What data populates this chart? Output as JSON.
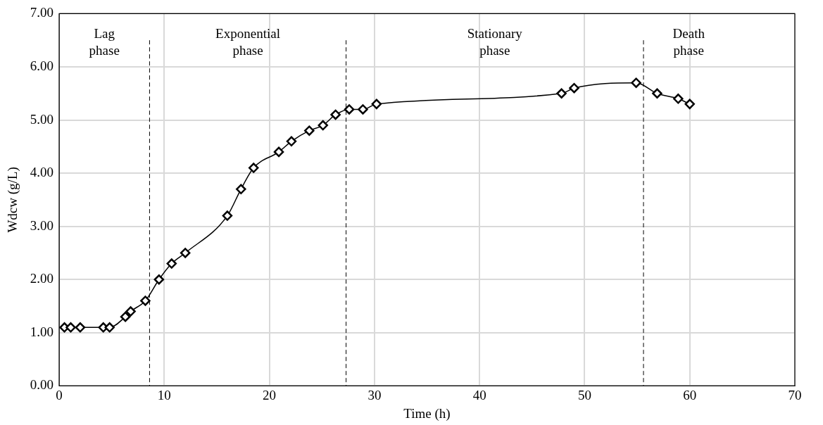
{
  "chart_data": {
    "type": "line",
    "xlabel": "Time (h)",
    "ylabel": "Wdcw (g/L)",
    "x": [
      0.5,
      1.1,
      2.0,
      4.2,
      4.8,
      6.3,
      6.8,
      8.2,
      9.5,
      10.7,
      12.0,
      16.0,
      17.3,
      18.5,
      20.9,
      22.1,
      23.8,
      25.1,
      26.3,
      27.6,
      28.9,
      30.2,
      47.8,
      49.0,
      54.9,
      56.9,
      58.9,
      60.0
    ],
    "series": [
      {
        "color": "#000000",
        "values": [
          1.1,
          1.1,
          1.1,
          1.1,
          1.1,
          1.3,
          1.4,
          1.6,
          2.0,
          2.3,
          2.5,
          3.2,
          3.7,
          4.1,
          4.4,
          4.6,
          4.8,
          4.9,
          5.1,
          5.2,
          5.2,
          5.3,
          5.5,
          5.6,
          5.7,
          5.5,
          5.4,
          5.3
        ]
      }
    ],
    "xlim": [
      0,
      70
    ],
    "xticks": [
      0,
      10,
      20,
      30,
      40,
      50,
      60,
      70
    ],
    "ylim": [
      0,
      7
    ],
    "yticks": [
      {
        "value": 0,
        "label": "0.00"
      },
      {
        "value": 1,
        "label": "1.00"
      },
      {
        "value": 2,
        "label": "2.00"
      },
      {
        "value": 3,
        "label": "3.00"
      },
      {
        "value": 4,
        "label": "4.00"
      },
      {
        "value": 5,
        "label": "5.00"
      },
      {
        "value": 6,
        "label": "6.00"
      },
      {
        "value": 7,
        "label": "7.00"
      }
    ],
    "ref_lines": [
      {
        "axis": "x",
        "value": 8.6,
        "line_style": "dashed",
        "color": "#000000"
      },
      {
        "axis": "x",
        "value": 27.3,
        "line_style": "dashed",
        "color": "#000000"
      },
      {
        "axis": "x",
        "value": 55.6,
        "line_style": "dashed",
        "color": "#000000"
      }
    ],
    "annotations": [
      "Lag\nphase",
      "Exponential\nphase",
      "Stationary\nphase",
      "Death\nphase"
    ],
    "grid": true,
    "marker": "diamond",
    "line_style": "solid",
    "legend": false
  }
}
